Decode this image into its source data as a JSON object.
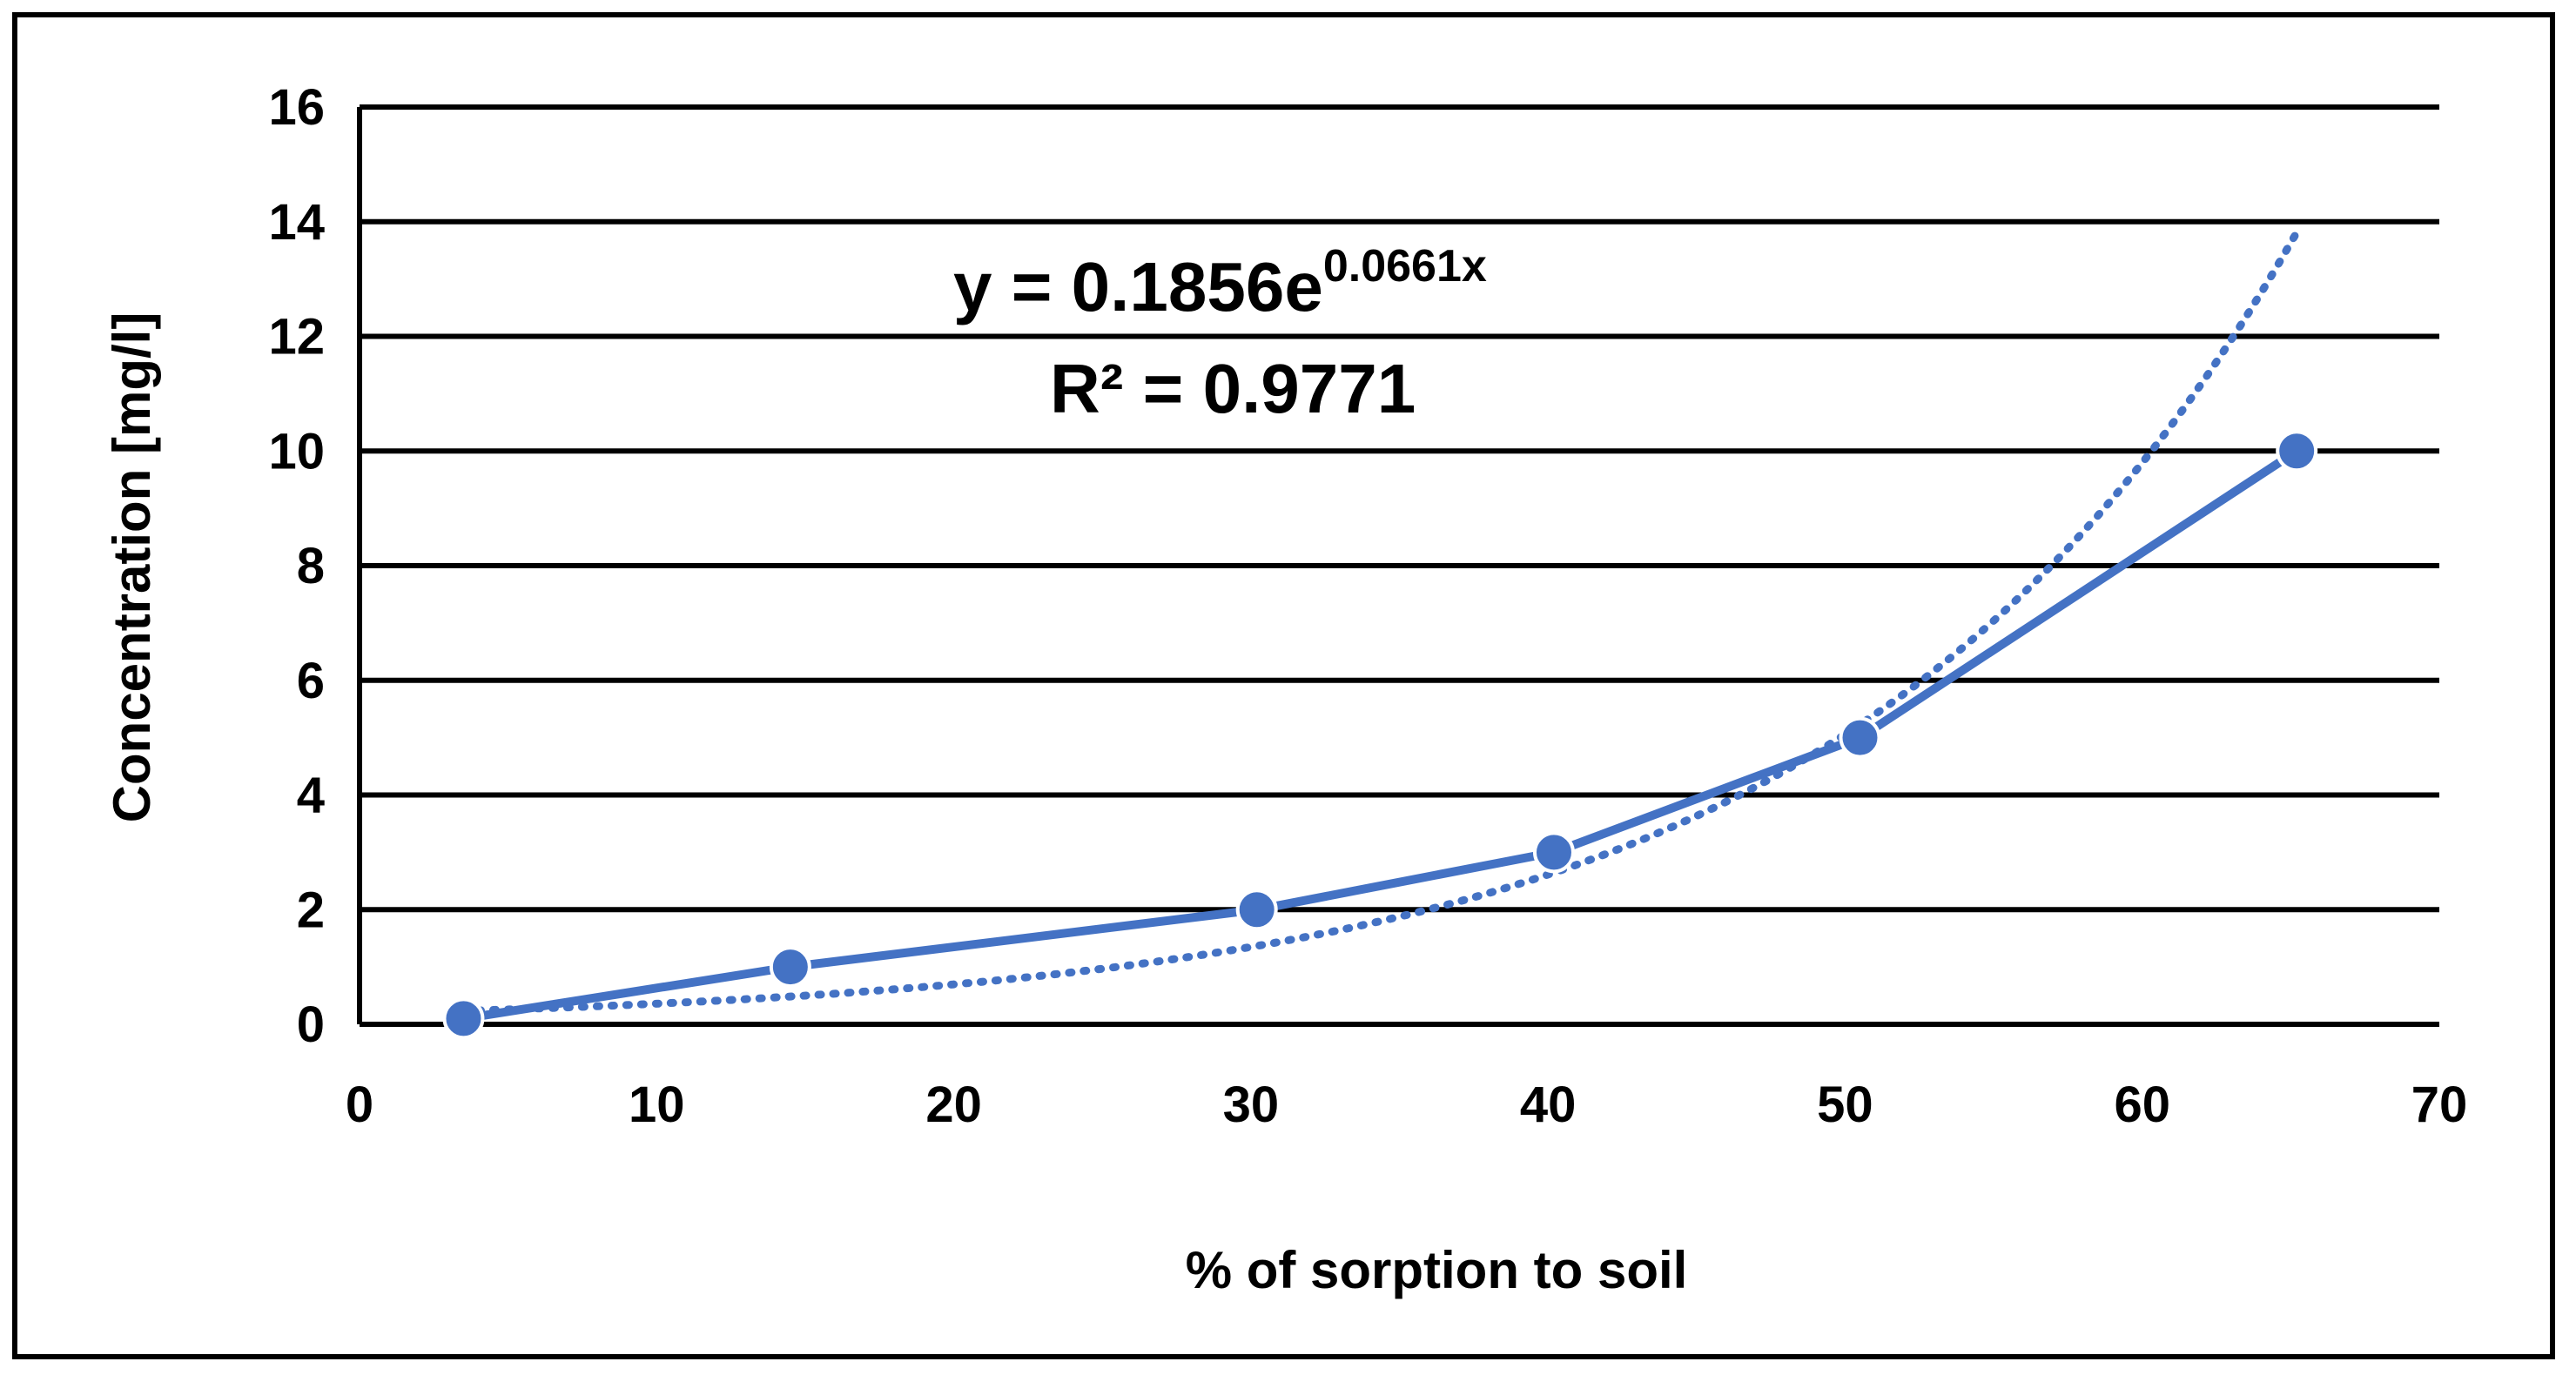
{
  "chart_data": {
    "type": "line",
    "title": "",
    "xlabel": "% of sorption to soil",
    "ylabel": "Concentration [mg/l]",
    "xlim": [
      0,
      70
    ],
    "ylim": [
      0,
      16
    ],
    "x_ticks": [
      "0",
      "10",
      "20",
      "30",
      "40",
      "50",
      "60",
      "70"
    ],
    "y_ticks": [
      "0",
      "2",
      "4",
      "6",
      "8",
      "10",
      "12",
      "14",
      "16"
    ],
    "grid": "horizontal",
    "series": [
      {
        "x": [
          3.5,
          14.5,
          30.2,
          40.2,
          50.5,
          65.2
        ],
        "y": [
          0.1,
          1.0,
          2.0,
          3.0,
          5.0,
          10.0
        ],
        "color": "#4472C4",
        "marker": "circle"
      }
    ],
    "trendline": {
      "type": "exponential",
      "a": 0.1856,
      "b": 0.0661,
      "x_range": [
        3.5,
        65.2
      ],
      "style": "dotted",
      "color": "#4472C4"
    },
    "annotations": {
      "equation_base": "y = 0.1856e",
      "equation_exponent": "0.0661x",
      "r_squared": "R² = 0.9771"
    }
  }
}
